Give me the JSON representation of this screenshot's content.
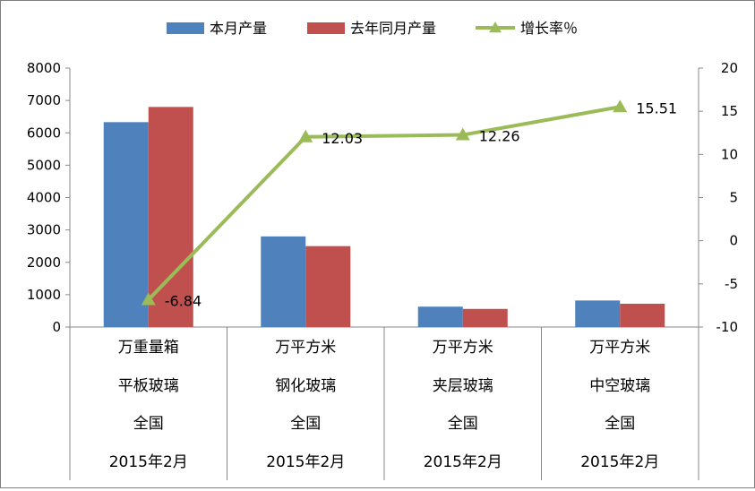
{
  "chart_data": {
    "type": "bar",
    "categories": [
      [
        "万重量箱",
        "平板玻璃",
        "全国",
        "2015年2月"
      ],
      [
        "万平方米",
        "钢化玻璃",
        "全国",
        "2015年2月"
      ],
      [
        "万平方米",
        "夹层玻璃",
        "全国",
        "2015年2月"
      ],
      [
        "万平方米",
        "中空玻璃",
        "全国",
        "2015年2月"
      ]
    ],
    "series": [
      {
        "name": "本月产量",
        "type": "bar",
        "axis": "left",
        "color": "#4f81bd",
        "values": [
          6330,
          2800,
          630,
          820
        ]
      },
      {
        "name": "去年同月产量",
        "type": "bar",
        "axis": "left",
        "color": "#c0504d",
        "values": [
          6800,
          2500,
          560,
          720
        ]
      },
      {
        "name": "增长率％",
        "type": "line",
        "axis": "right",
        "color": "#9bbb59",
        "values": [
          -6.84,
          12.03,
          12.26,
          15.51
        ]
      }
    ],
    "data_labels": [
      "-6.84",
      "12.03",
      "12.26",
      "15.51"
    ],
    "y_left": {
      "min": 0,
      "max": 8000,
      "step": 1000,
      "ticks": [
        "0",
        "1000",
        "2000",
        "3000",
        "4000",
        "5000",
        "6000",
        "7000",
        "8000"
      ]
    },
    "y_right": {
      "min": -10,
      "max": 20,
      "step": 5,
      "ticks": [
        "-10",
        "-5",
        "0",
        "5",
        "10",
        "15",
        "20"
      ]
    },
    "legend_position": "top",
    "grid": false
  }
}
